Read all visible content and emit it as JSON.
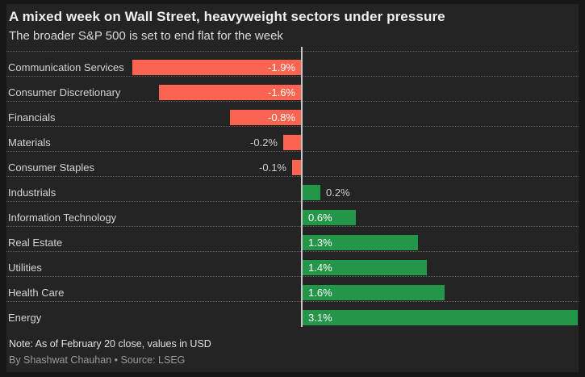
{
  "header": {
    "title": "A mixed week on Wall Street, heavyweight sectors under pressure",
    "subtitle": "The broader S&P 500 is set to end flat for the week"
  },
  "chart_data": {
    "type": "bar",
    "orientation": "horizontal",
    "title": "A mixed week on Wall Street, heavyweight sectors under pressure",
    "subtitle": "The broader S&P 500 is set to end flat for the week",
    "unit": "percent weekly change",
    "categories": [
      "Communication Services",
      "Consumer Discretionary",
      "Financials",
      "Materials",
      "Consumer Staples",
      "Industrials",
      "Information Technology",
      "Real Estate",
      "Utilities",
      "Health Care",
      "Energy"
    ],
    "values": [
      -1.9,
      -1.6,
      -0.8,
      -0.2,
      -0.1,
      0.2,
      0.6,
      1.3,
      1.4,
      1.6,
      3.1
    ],
    "value_labels": [
      "-1.9%",
      "-1.6%",
      "-0.8%",
      "-0.2%",
      "-0.1%",
      "0.2%",
      "0.6%",
      "1.3%",
      "1.4%",
      "1.6%",
      "3.1%"
    ],
    "xlim": [
      -1.9,
      3.1
    ],
    "grid": "dotted horizontal row separators, vertical zero baseline",
    "legend": "none",
    "colors": {
      "negative_bar": "#fa6450",
      "positive_bar": "#24964a",
      "baseline": "#c6c6c6",
      "card_background": "#242424",
      "outer_background": "#171717"
    }
  },
  "footer": {
    "note": "Note: As of February 20 close, values in USD",
    "byline": "By Shashwat Chauhan • Source: LSEG"
  }
}
